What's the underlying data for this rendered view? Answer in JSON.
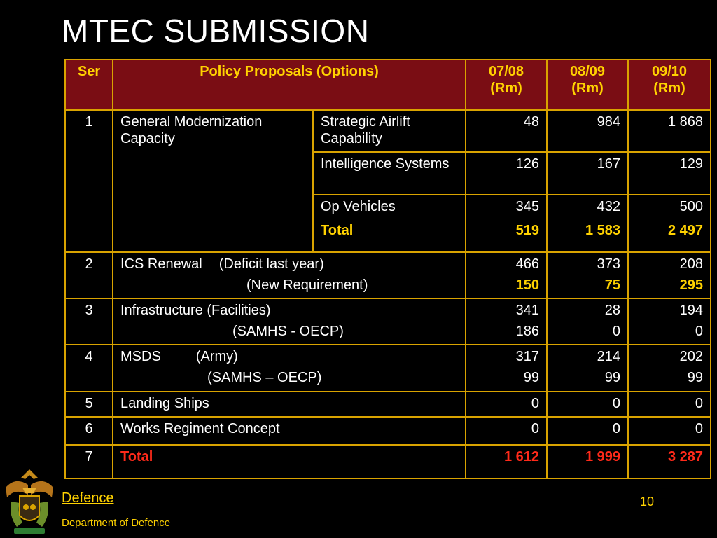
{
  "slide": {
    "title": "MTEC SUBMISSION",
    "page_number": "10"
  },
  "footer": {
    "link": "Defence",
    "department": "Department of Defence",
    "logo": "national-coat-of-arms-icon"
  },
  "table": {
    "headers": {
      "ser": "Ser",
      "policy": "Policy Proposals (Options)",
      "y1": "07/08 (Rm)",
      "y2": "08/09 (Rm)",
      "y3": "09/10 (Rm)"
    },
    "row1": {
      "ser": "1",
      "category": "General Modernization Capacity",
      "items": [
        {
          "name": "Strategic Airlift Capability",
          "y1": "48",
          "y2": "984",
          "y3": "1 868"
        },
        {
          "name": "Intelligence Systems",
          "y1": "126",
          "y2": "167",
          "y3": "129"
        },
        {
          "name": "Op Vehicles",
          "y1": "345",
          "y2": "432",
          "y3": "500"
        }
      ],
      "total": {
        "label": "Total",
        "y1": "519",
        "y2": "1 583",
        "y3": "2 497"
      }
    },
    "row2": {
      "ser": "2",
      "name": "ICS Renewal",
      "sub1": "(Deficit last year)",
      "sub2": "(New Requirement)",
      "y1a": "466",
      "y2a": "373",
      "y3a": "208",
      "y1b": "150",
      "y2b": "75",
      "y3b": "295"
    },
    "row3": {
      "ser": "3",
      "name": "Infrastructure (Facilities)",
      "sub": "(SAMHS - OECP)",
      "y1a": "341",
      "y2a": "28",
      "y3a": "194",
      "y1b": "186",
      "y2b": "0",
      "y3b": "0"
    },
    "row4": {
      "ser": "4",
      "name": "MSDS",
      "sub1": "(Army)",
      "sub2": "(SAMHS – OECP)",
      "y1a": "317",
      "y2a": "214",
      "y3a": "202",
      "y1b": "99",
      "y2b": "99",
      "y3b": "99"
    },
    "row5": {
      "ser": "5",
      "name": "Landing Ships",
      "y1": "0",
      "y2": "0",
      "y3": "0"
    },
    "row6": {
      "ser": "6",
      "name": "Works Regiment Concept",
      "y1": "0",
      "y2": "0",
      "y3": "0"
    },
    "row7": {
      "ser": "7",
      "name": "Total",
      "y1": "1 612",
      "y2": "1 999",
      "y3": "3 287"
    }
  },
  "colors": {
    "background": "#000000",
    "header_bg": "#7a0d14",
    "header_text": "#ffd200",
    "border": "#d9a300",
    "accent_yellow": "#ffd200",
    "accent_red": "#ff2a1a"
  }
}
